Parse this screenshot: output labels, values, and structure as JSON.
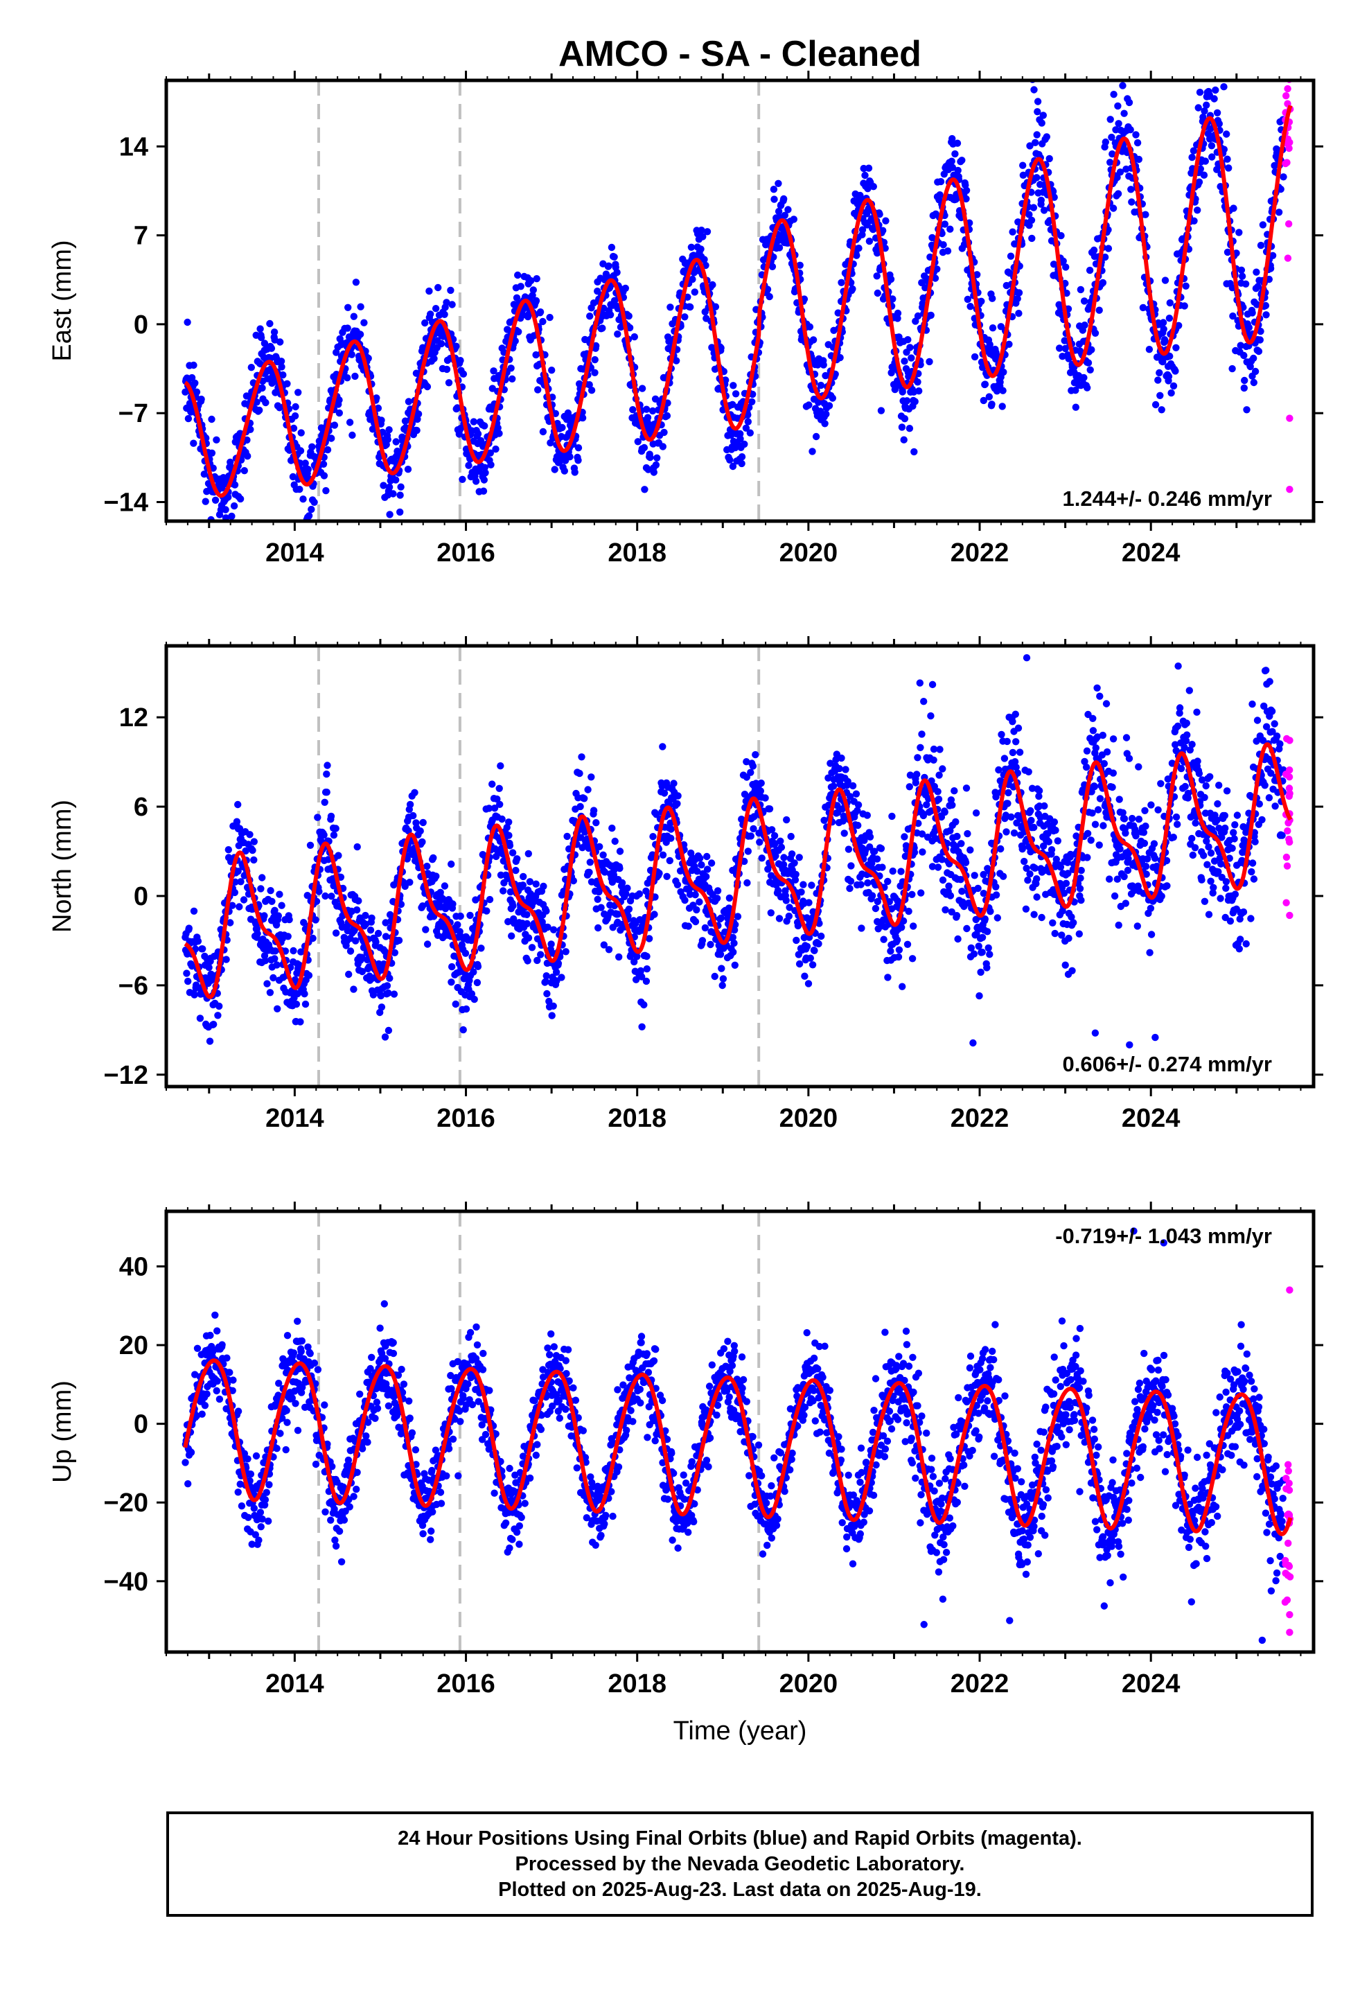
{
  "title": "AMCO  - SA - Cleaned",
  "xlabel": "Time (year)",
  "colors": {
    "final": "#0000ff",
    "rapid": "#ff00ff",
    "model": "#ff0000",
    "breaks": "#c0c0c0"
  },
  "footer": {
    "line1": "24 Hour Positions Using Final Orbits (blue) and Rapid Orbits (magenta).",
    "line2": "Processed by the Nevada Geodetic Laboratory.",
    "line3": "Plotted on 2025-Aug-23. Last data on 2025-Aug-19."
  },
  "chart_data": [
    {
      "type": "scatter",
      "panel": "east",
      "ylabel": "East (mm)",
      "xlim": [
        2012.5,
        2025.9
      ],
      "ylim": [
        -15.5,
        19.2
      ],
      "yticks": [
        -14,
        -7,
        0,
        7,
        14
      ],
      "xticks": [
        2014,
        2016,
        2018,
        2020,
        2022,
        2024
      ],
      "rate_label": "1.244+/- 0.246 mm/yr",
      "rate_position": "bottom-right",
      "breaks": [
        2014.28,
        2015.93,
        2019.42
      ],
      "data_start": 2012.72,
      "data_end": 2025.63,
      "rapid_start": 2025.55,
      "model": {
        "offset": -9.2,
        "rate": 1.244,
        "annual_amp": 4.6,
        "annual_phase": 0.3,
        "semiannual_amp": 0.4,
        "semiannual_phase": 0.1,
        "amp_growth": 0.08,
        "steps": [
          {
            "epoch": 2019.42,
            "size": 1.5
          }
        ]
      },
      "scatter_sd": 1.6,
      "outliers": [
        [
          2025.62,
          -7.4
        ],
        [
          2025.62,
          -13.0
        ],
        [
          2025.6,
          5.2
        ],
        [
          2025.61,
          7.9
        ],
        [
          2024.95,
          -3.5
        ],
        [
          2020.85,
          -6.8
        ]
      ]
    },
    {
      "type": "scatter",
      "panel": "north",
      "ylabel": "North (mm)",
      "xlim": [
        2012.5,
        2025.9
      ],
      "ylim": [
        -12.8,
        16.8
      ],
      "yticks": [
        -12,
        -6,
        0,
        6,
        12
      ],
      "xticks": [
        2014,
        2016,
        2018,
        2020,
        2022,
        2024
      ],
      "rate_label": "0.606+/- 0.274 mm/yr",
      "rate_position": "bottom-right",
      "breaks": [
        2014.28,
        2015.93,
        2019.42
      ],
      "data_start": 2012.72,
      "data_end": 2025.63,
      "rapid_start": 2025.55,
      "model": {
        "offset": -2.5,
        "rate": 0.606,
        "annual_amp": 3.9,
        "annual_phase": 0.55,
        "semiannual_amp": 1.6,
        "semiannual_phase": 0.05,
        "amp_growth": 0.0,
        "steps": []
      },
      "scatter_sd": 1.7,
      "outliers": [
        [
          2023.35,
          -9.2
        ],
        [
          2023.75,
          -10.0
        ],
        [
          2024.05,
          -9.5
        ],
        [
          2025.62,
          -1.3
        ],
        [
          2022.55,
          16.0
        ],
        [
          2021.45,
          14.2
        ],
        [
          2024.45,
          13.8
        ]
      ]
    },
    {
      "type": "scatter",
      "panel": "up",
      "ylabel": "Up (mm)",
      "xlim": [
        2012.5,
        2025.9
      ],
      "ylim": [
        -58,
        54
      ],
      "yticks": [
        -40,
        -20,
        0,
        20,
        40
      ],
      "xticks": [
        2014,
        2016,
        2018,
        2020,
        2022,
        2024
      ],
      "rate_label": "-0.719+/- 1.043 mm/yr",
      "rate_position": "top-right",
      "breaks": [
        2014.28,
        2015.93,
        2019.42
      ],
      "data_start": 2012.72,
      "data_end": 2025.63,
      "rapid_start": 2025.55,
      "model": {
        "offset": 0.0,
        "rate": -0.719,
        "annual_amp": 17.5,
        "annual_phase": -0.07,
        "semiannual_amp": 1.5,
        "semiannual_phase": 0.2,
        "amp_growth": 0.0,
        "steps": []
      },
      "scatter_sd": 5.0,
      "outliers": [
        [
          2021.35,
          -51.0
        ],
        [
          2025.3,
          -55.0
        ],
        [
          2025.62,
          -53.0
        ],
        [
          2025.62,
          -48.5
        ],
        [
          2025.61,
          -36.0
        ],
        [
          2025.62,
          34.0
        ],
        [
          2023.8,
          49.0
        ],
        [
          2024.15,
          46.0
        ],
        [
          2022.35,
          -50.0
        ]
      ]
    }
  ]
}
